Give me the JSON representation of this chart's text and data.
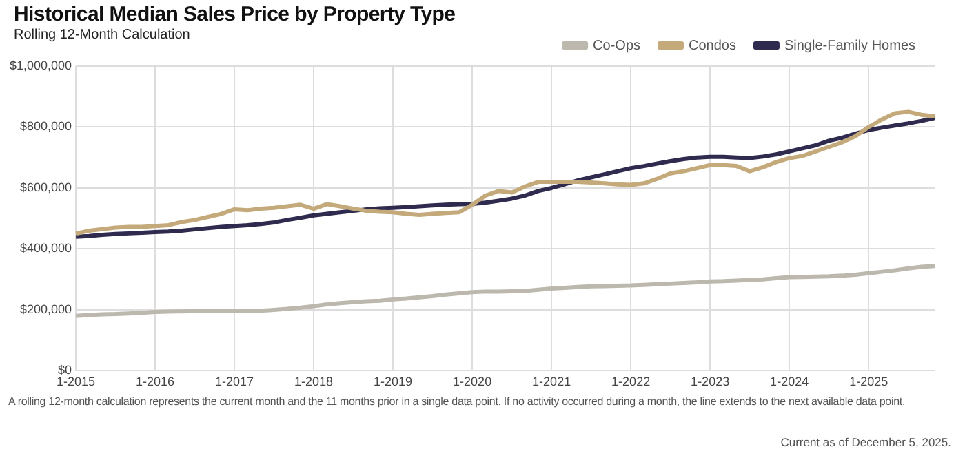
{
  "chart_data": {
    "type": "line",
    "title": "Historical Median Sales Price by Property Type",
    "subtitle": "Rolling 12-Month Calculation",
    "categories": [
      "1-2015",
      null,
      null,
      null,
      null,
      null,
      "1-2016",
      null,
      null,
      null,
      null,
      null,
      "1-2017",
      null,
      null,
      null,
      null,
      null,
      "1-2018",
      null,
      null,
      null,
      null,
      null,
      "1-2019",
      null,
      null,
      null,
      null,
      null,
      "1-2020",
      null,
      null,
      null,
      null,
      null,
      "1-2021",
      null,
      null,
      null,
      null,
      null,
      "1-2022",
      null,
      null,
      null,
      null,
      null,
      "1-2023",
      null,
      null,
      null,
      null,
      null,
      "1-2024",
      null,
      null,
      null,
      null,
      null,
      "1-2025",
      null,
      null,
      null,
      null,
      null
    ],
    "series": [
      {
        "name": "Co-Ops",
        "color": "#bcb8ae",
        "values": [
          180000,
          183000,
          185000,
          186000,
          188000,
          190000,
          193000,
          194000,
          195000,
          196000,
          197000,
          197000,
          197000,
          196000,
          197000,
          200000,
          203000,
          207000,
          212000,
          218000,
          222000,
          225000,
          228000,
          230000,
          234000,
          237000,
          241000,
          245000,
          250000,
          254000,
          258000,
          260000,
          260000,
          261000,
          262000,
          266000,
          270000,
          272000,
          275000,
          277000,
          278000,
          279000,
          280000,
          282000,
          284000,
          286000,
          288000,
          290000,
          293000,
          294000,
          296000,
          298000,
          300000,
          304000,
          307000,
          308000,
          309000,
          310000,
          312000,
          315000,
          320000,
          325000,
          330000,
          336000,
          341000,
          344000
        ]
      },
      {
        "name": "Condos",
        "color": "#c4a97a",
        "values": [
          450000,
          460000,
          465000,
          470000,
          472000,
          472000,
          475000,
          478000,
          488000,
          495000,
          505000,
          515000,
          530000,
          527000,
          532000,
          535000,
          540000,
          545000,
          532000,
          547000,
          540000,
          532000,
          525000,
          522000,
          520000,
          515000,
          512000,
          515000,
          518000,
          520000,
          545000,
          575000,
          590000,
          585000,
          605000,
          620000,
          620000,
          620000,
          620000,
          618000,
          615000,
          612000,
          610000,
          615000,
          630000,
          648000,
          655000,
          665000,
          675000,
          675000,
          672000,
          655000,
          668000,
          685000,
          698000,
          705000,
          720000,
          735000,
          750000,
          770000,
          800000,
          825000,
          845000,
          850000,
          840000,
          835000
        ]
      },
      {
        "name": "Single-Family Homes",
        "color": "#2f2b4f",
        "values": [
          440000,
          442000,
          446000,
          449000,
          451000,
          453000,
          455000,
          457000,
          460000,
          464000,
          468000,
          472000,
          475000,
          478000,
          482000,
          487000,
          495000,
          502000,
          510000,
          515000,
          520000,
          525000,
          530000,
          533000,
          535000,
          537000,
          540000,
          543000,
          545000,
          547000,
          548000,
          552000,
          558000,
          565000,
          575000,
          590000,
          600000,
          612000,
          625000,
          635000,
          645000,
          655000,
          665000,
          672000,
          680000,
          688000,
          695000,
          700000,
          702000,
          702000,
          700000,
          698000,
          703000,
          710000,
          720000,
          730000,
          740000,
          755000,
          765000,
          778000,
          790000,
          798000,
          805000,
          812000,
          820000,
          830000
        ]
      }
    ],
    "ylim": [
      0,
      1000000
    ],
    "yticks": [
      {
        "value": 0,
        "label": "$0"
      },
      {
        "value": 200000,
        "label": "$200,000"
      },
      {
        "value": 400000,
        "label": "$400,000"
      },
      {
        "value": 600000,
        "label": "$600,000"
      },
      {
        "value": 800000,
        "label": "$800,000"
      },
      {
        "value": 1000000,
        "label": "$1,000,000"
      }
    ],
    "grid": true,
    "legend": "top right",
    "marker": "none",
    "line_style": "solid",
    "annotations": [
      "A rolling 12-month calculation represents the current month and the 11 months prior in a single data point. If no activity occurred during a month, the line extends to the next available data point.",
      "Current as of December 5, 2025."
    ]
  }
}
